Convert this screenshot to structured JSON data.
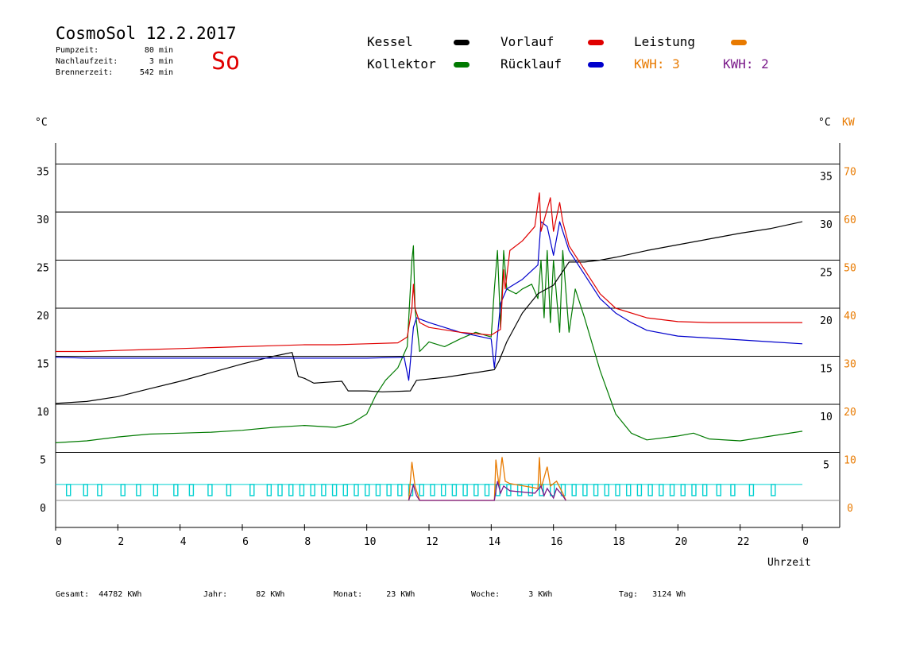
{
  "header": {
    "title": "CosmoSol 12.2.2017",
    "day": "So",
    "info": [
      {
        "label": "Pumpzeit:",
        "value": "80 min"
      },
      {
        "label": "Nachlaufzeit:",
        "value": "3 min"
      },
      {
        "label": "Brennerzeit:",
        "value": "542 min"
      }
    ]
  },
  "legend": {
    "kessel": "Kessel",
    "kollektor": "Kollektor",
    "vorlauf": "Vorlauf",
    "ruecklauf": "Rücklauf",
    "leistung": "Leistung",
    "kwh1": "KWH: 3",
    "kwh2": "KWH: 2"
  },
  "colors": {
    "kessel": "#000000",
    "kollektor": "#007a00",
    "vorlauf": "#e00000",
    "ruecklauf": "#0000cc",
    "leistung": "#e87a00",
    "kwh2": "#7a1a8a",
    "pump": "#00d0d0"
  },
  "axis_units": {
    "left": "°C",
    "right_c": "°C",
    "right_kw": "KW",
    "x": "Uhrzeit"
  },
  "footer": [
    {
      "label": "Gesamt:",
      "value": "44782 KWh"
    },
    {
      "label": "Jahr:",
      "value": "82 KWh"
    },
    {
      "label": "Monat:",
      "value": "23 KWh"
    },
    {
      "label": "Woche:",
      "value": "3 KWh"
    },
    {
      "label": "Tag:",
      "value": "3124 Wh"
    }
  ],
  "chart_data": {
    "type": "line",
    "xlabel": "Uhrzeit",
    "ylabel": "°C",
    "ylabel_right": "KW",
    "xlim": [
      0,
      24
    ],
    "ylim": [
      -2,
      38
    ],
    "ylim_right": [
      0,
      70
    ],
    "x_ticks": [
      "0",
      "2",
      "4",
      "6",
      "8",
      "10",
      "12",
      "14",
      "16",
      "18",
      "20",
      "22",
      "0"
    ],
    "y_ticks_left": [
      "0",
      "5",
      "10",
      "15",
      "20",
      "25",
      "30",
      "35"
    ],
    "y_ticks_right_c": [
      "5",
      "10",
      "15",
      "20",
      "25",
      "30",
      "35"
    ],
    "y_ticks_right_kw": [
      "0",
      "10",
      "20",
      "30",
      "40",
      "50",
      "60",
      "70"
    ],
    "grid": true,
    "series": [
      {
        "name": "Kessel",
        "color": "#000000",
        "points": [
          [
            0,
            10.1
          ],
          [
            1,
            10.3
          ],
          [
            2,
            10.8
          ],
          [
            3,
            11.6
          ],
          [
            4,
            12.4
          ],
          [
            5,
            13.3
          ],
          [
            6,
            14.2
          ],
          [
            7,
            15
          ],
          [
            7.6,
            15.4
          ],
          [
            7.8,
            12.9
          ],
          [
            8,
            12.7
          ],
          [
            8.3,
            12.2
          ],
          [
            8.7,
            12.3
          ],
          [
            9.2,
            12.4
          ],
          [
            9.4,
            11.4
          ],
          [
            10,
            11.4
          ],
          [
            10.5,
            11.3
          ],
          [
            11.4,
            11.4
          ],
          [
            11.6,
            12.5
          ],
          [
            12.5,
            12.8
          ],
          [
            13.5,
            13.3
          ],
          [
            14.1,
            13.6
          ],
          [
            14.25,
            14.5
          ],
          [
            14.5,
            16.5
          ],
          [
            15,
            19.5
          ],
          [
            15.5,
            21.5
          ],
          [
            16,
            22.4
          ],
          [
            16.5,
            24.8
          ],
          [
            17,
            24.8
          ],
          [
            17.5,
            25
          ],
          [
            18,
            25.3
          ],
          [
            19,
            26
          ],
          [
            20,
            26.6
          ],
          [
            21,
            27.2
          ],
          [
            22,
            27.8
          ],
          [
            23,
            28.3
          ],
          [
            24,
            29
          ]
        ]
      },
      {
        "name": "Vorlauf",
        "color": "#e00000",
        "points": [
          [
            0,
            15.5
          ],
          [
            1,
            15.5
          ],
          [
            2,
            15.6
          ],
          [
            3,
            15.7
          ],
          [
            4,
            15.8
          ],
          [
            5,
            15.9
          ],
          [
            6,
            16
          ],
          [
            7,
            16.1
          ],
          [
            8,
            16.2
          ],
          [
            9,
            16.2
          ],
          [
            10,
            16.3
          ],
          [
            11,
            16.4
          ],
          [
            11.3,
            17
          ],
          [
            11.45,
            20
          ],
          [
            11.5,
            22.5
          ],
          [
            11.55,
            20
          ],
          [
            11.7,
            18.5
          ],
          [
            12,
            18
          ],
          [
            13,
            17.5
          ],
          [
            14,
            17.2
          ],
          [
            14.3,
            17.8
          ],
          [
            14.4,
            24
          ],
          [
            14.45,
            22
          ],
          [
            14.6,
            26
          ],
          [
            15,
            27
          ],
          [
            15.4,
            28.5
          ],
          [
            15.55,
            32
          ],
          [
            15.6,
            28
          ],
          [
            15.9,
            31.5
          ],
          [
            16,
            28
          ],
          [
            16.2,
            31
          ],
          [
            16.3,
            29
          ],
          [
            16.5,
            26.5
          ],
          [
            17,
            24
          ],
          [
            17.5,
            21.5
          ],
          [
            18,
            20
          ],
          [
            19,
            19
          ],
          [
            20,
            18.6
          ],
          [
            21,
            18.5
          ],
          [
            22,
            18.5
          ],
          [
            23,
            18.5
          ],
          [
            24,
            18.5
          ]
        ]
      },
      {
        "name": "Rücklauf",
        "color": "#0000cc",
        "points": [
          [
            0,
            14.9
          ],
          [
            1,
            14.8
          ],
          [
            2,
            14.8
          ],
          [
            3,
            14.8
          ],
          [
            4,
            14.8
          ],
          [
            5,
            14.8
          ],
          [
            6,
            14.8
          ],
          [
            7,
            14.8
          ],
          [
            7.7,
            14.8
          ],
          [
            9,
            14.8
          ],
          [
            10,
            14.8
          ],
          [
            11.2,
            14.9
          ],
          [
            11.35,
            12.5
          ],
          [
            11.5,
            18
          ],
          [
            11.6,
            19
          ],
          [
            12,
            18.5
          ],
          [
            13,
            17.5
          ],
          [
            14,
            16.8
          ],
          [
            14.1,
            13.8
          ],
          [
            14.3,
            20.5
          ],
          [
            14.5,
            22
          ],
          [
            15,
            23
          ],
          [
            15.5,
            24.5
          ],
          [
            15.6,
            29
          ],
          [
            15.8,
            28.5
          ],
          [
            16,
            25.5
          ],
          [
            16.2,
            29
          ],
          [
            16.5,
            26
          ],
          [
            17,
            23.5
          ],
          [
            17.5,
            21
          ],
          [
            18,
            19.5
          ],
          [
            18.5,
            18.5
          ],
          [
            19,
            17.7
          ],
          [
            20,
            17.1
          ],
          [
            21,
            16.9
          ],
          [
            22,
            16.7
          ],
          [
            23,
            16.5
          ],
          [
            24,
            16.3
          ]
        ]
      },
      {
        "name": "Kollektor",
        "color": "#007a00",
        "points": [
          [
            0,
            6
          ],
          [
            1,
            6.2
          ],
          [
            2,
            6.6
          ],
          [
            3,
            6.9
          ],
          [
            4,
            7
          ],
          [
            5,
            7.1
          ],
          [
            6,
            7.3
          ],
          [
            7,
            7.6
          ],
          [
            8,
            7.8
          ],
          [
            9,
            7.6
          ],
          [
            9.5,
            8
          ],
          [
            10,
            9
          ],
          [
            10.3,
            11
          ],
          [
            10.6,
            12.5
          ],
          [
            11,
            13.8
          ],
          [
            11.3,
            16
          ],
          [
            11.45,
            25
          ],
          [
            11.5,
            26.5
          ],
          [
            11.55,
            20
          ],
          [
            11.7,
            15.5
          ],
          [
            12,
            16.5
          ],
          [
            12.5,
            16
          ],
          [
            13,
            16.8
          ],
          [
            13.5,
            17.5
          ],
          [
            14,
            17
          ],
          [
            14.1,
            22
          ],
          [
            14.2,
            26
          ],
          [
            14.3,
            18
          ],
          [
            14.4,
            26
          ],
          [
            14.5,
            22
          ],
          [
            14.8,
            21.5
          ],
          [
            15,
            22
          ],
          [
            15.3,
            22.5
          ],
          [
            15.5,
            21
          ],
          [
            15.6,
            25
          ],
          [
            15.7,
            19
          ],
          [
            15.8,
            26
          ],
          [
            15.9,
            18.5
          ],
          [
            16,
            25
          ],
          [
            16.2,
            17.5
          ],
          [
            16.3,
            26
          ],
          [
            16.5,
            17.5
          ],
          [
            16.7,
            22
          ],
          [
            17,
            19
          ],
          [
            17.5,
            13.5
          ],
          [
            18,
            9
          ],
          [
            18.5,
            7
          ],
          [
            19,
            6.3
          ],
          [
            20,
            6.7
          ],
          [
            20.5,
            7
          ],
          [
            21,
            6.4
          ],
          [
            22,
            6.2
          ],
          [
            23,
            6.7
          ],
          [
            24,
            7.2
          ]
        ]
      }
    ],
    "power_series": [
      {
        "name": "Leistung",
        "color": "#e87a00",
        "points_kw": [
          [
            11.35,
            0
          ],
          [
            11.45,
            8
          ],
          [
            11.55,
            3
          ],
          [
            11.7,
            0
          ],
          [
            14.1,
            0
          ],
          [
            14.15,
            8.5
          ],
          [
            14.25,
            3
          ],
          [
            14.35,
            9
          ],
          [
            14.45,
            4
          ],
          [
            14.6,
            3.5
          ],
          [
            15.5,
            2.5
          ],
          [
            15.55,
            9
          ],
          [
            15.6,
            2.5
          ],
          [
            15.8,
            7
          ],
          [
            15.9,
            3
          ],
          [
            16.1,
            4
          ],
          [
            16.3,
            1.5
          ],
          [
            16.4,
            0
          ]
        ]
      },
      {
        "name": "KWH: 2",
        "color": "#7a1a8a",
        "points_kw": [
          [
            11.35,
            0
          ],
          [
            11.5,
            3.2
          ],
          [
            11.6,
            1
          ],
          [
            11.7,
            0
          ],
          [
            14.1,
            0
          ],
          [
            14.2,
            4
          ],
          [
            14.3,
            1.5
          ],
          [
            14.4,
            3
          ],
          [
            14.6,
            2
          ],
          [
            15.4,
            1.5
          ],
          [
            15.6,
            3
          ],
          [
            15.7,
            1
          ],
          [
            15.8,
            2.5
          ],
          [
            16,
            0.5
          ],
          [
            16.1,
            2.5
          ],
          [
            16.3,
            1
          ],
          [
            16.4,
            0
          ]
        ]
      }
    ],
    "pump_on_hours": [
      0.35,
      0.9,
      1.35,
      2.1,
      2.6,
      3.15,
      3.8,
      4.3,
      4.9,
      5.5,
      6.25,
      6.8,
      7.15,
      7.5,
      7.85,
      8.2,
      8.55,
      8.9,
      9.25,
      9.6,
      9.95,
      10.3,
      10.65,
      11,
      11.35,
      11.7,
      12.05,
      12.4,
      12.75,
      13.1,
      13.45,
      13.8,
      14.15,
      14.5,
      14.85,
      15.2,
      15.55,
      15.9,
      16.25,
      16.6,
      16.95,
      17.3,
      17.65,
      18,
      18.35,
      18.7,
      19.05,
      19.4,
      19.75,
      20.1,
      20.45,
      20.8,
      21.25,
      21.7,
      22.3,
      23
    ]
  },
  "pump_y": 1.0
}
